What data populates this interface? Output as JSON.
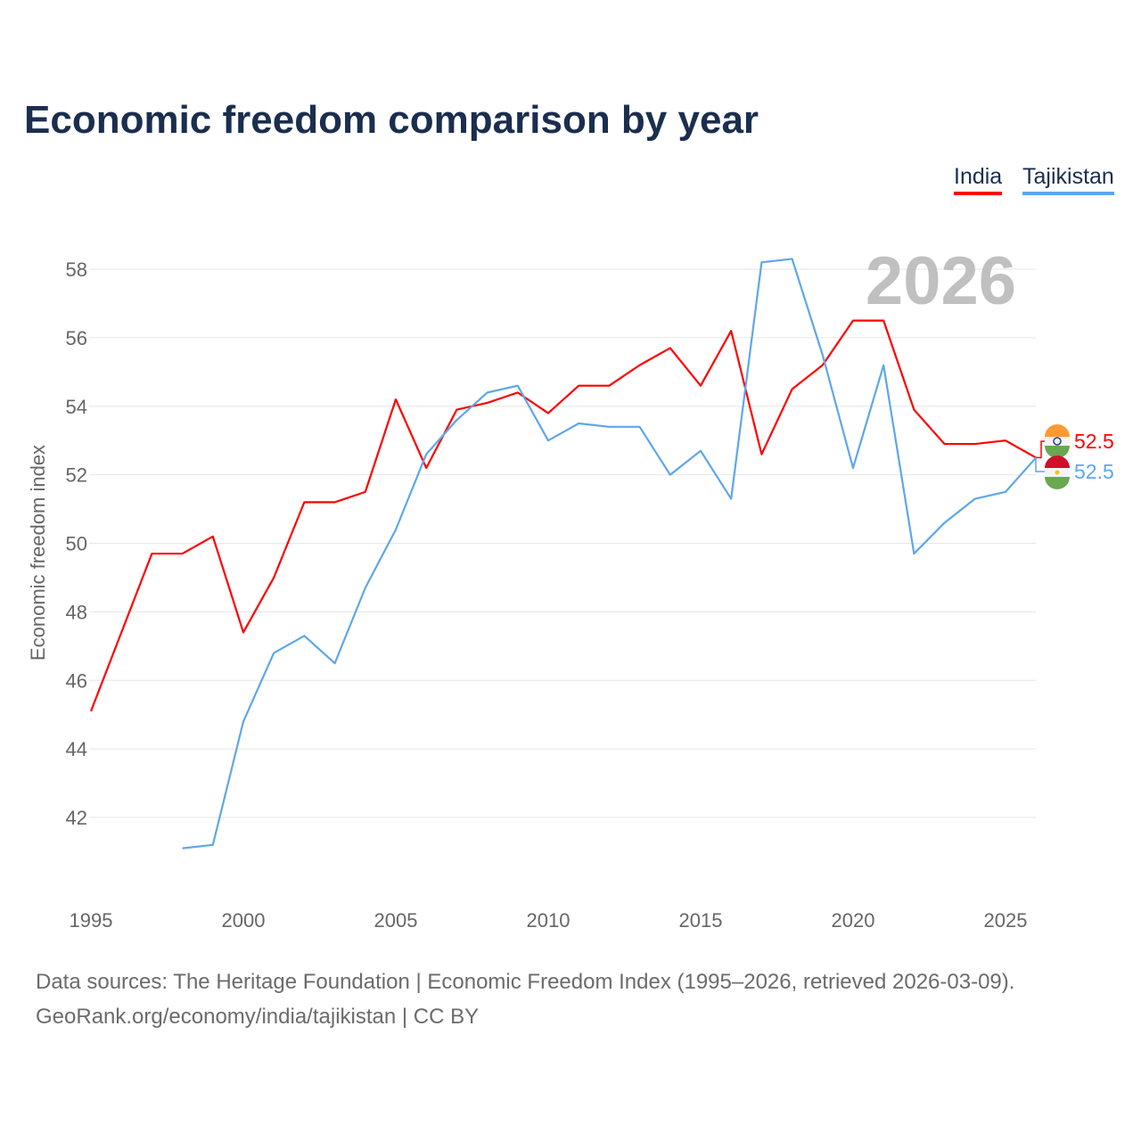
{
  "chart_data": {
    "type": "line",
    "title": "Economic freedom comparison by year",
    "xlabel": "",
    "ylabel": "Economic freedom index",
    "year_watermark": "2026",
    "xlim": [
      1995,
      2026
    ],
    "ylim": [
      40,
      58.6
    ],
    "x_ticks": [
      "1995",
      "2000",
      "2005",
      "2010",
      "2015",
      "2020",
      "2025"
    ],
    "y_ticks": [
      "42",
      "44",
      "46",
      "48",
      "50",
      "52",
      "54",
      "56",
      "58"
    ],
    "grid": true,
    "legend_position": "top-right",
    "series": [
      {
        "name": "India",
        "color": "#ff0000",
        "end_label": "52.5",
        "x": [
          1995,
          1996,
          1997,
          1998,
          1999,
          2000,
          2001,
          2002,
          2003,
          2004,
          2005,
          2006,
          2007,
          2008,
          2009,
          2010,
          2011,
          2012,
          2013,
          2014,
          2015,
          2016,
          2017,
          2018,
          2019,
          2020,
          2021,
          2022,
          2023,
          2024,
          2025,
          2026
        ],
        "values": [
          45.1,
          47.4,
          49.7,
          49.7,
          50.2,
          47.4,
          49.0,
          51.2,
          51.2,
          51.5,
          54.2,
          52.2,
          53.9,
          54.1,
          54.4,
          53.8,
          54.6,
          54.6,
          55.2,
          55.7,
          54.6,
          56.2,
          52.6,
          54.5,
          55.2,
          56.5,
          56.5,
          53.9,
          52.9,
          52.9,
          53.0,
          52.5
        ]
      },
      {
        "name": "Tajikistan",
        "color": "#5ea6ec",
        "end_label": "52.5",
        "x": [
          1998,
          1999,
          2000,
          2001,
          2002,
          2003,
          2004,
          2005,
          2006,
          2007,
          2008,
          2009,
          2010,
          2011,
          2012,
          2013,
          2014,
          2015,
          2016,
          2017,
          2018,
          2019,
          2020,
          2021,
          2022,
          2023,
          2024,
          2025,
          2026
        ],
        "values": [
          41.1,
          41.2,
          44.8,
          46.8,
          47.3,
          46.5,
          48.7,
          50.4,
          52.6,
          53.6,
          54.4,
          54.6,
          53.0,
          53.5,
          53.4,
          53.4,
          52.0,
          52.7,
          51.3,
          58.2,
          58.3,
          55.5,
          52.2,
          55.2,
          49.7,
          50.6,
          51.3,
          51.5,
          52.5
        ]
      }
    ]
  },
  "footer": {
    "line1": "Data sources: The Heritage Foundation | Economic Freedom Index (1995–2026, retrieved 2026-03-09).",
    "line2": "GeoRank.org/economy/india/tajikistan | CC BY"
  }
}
